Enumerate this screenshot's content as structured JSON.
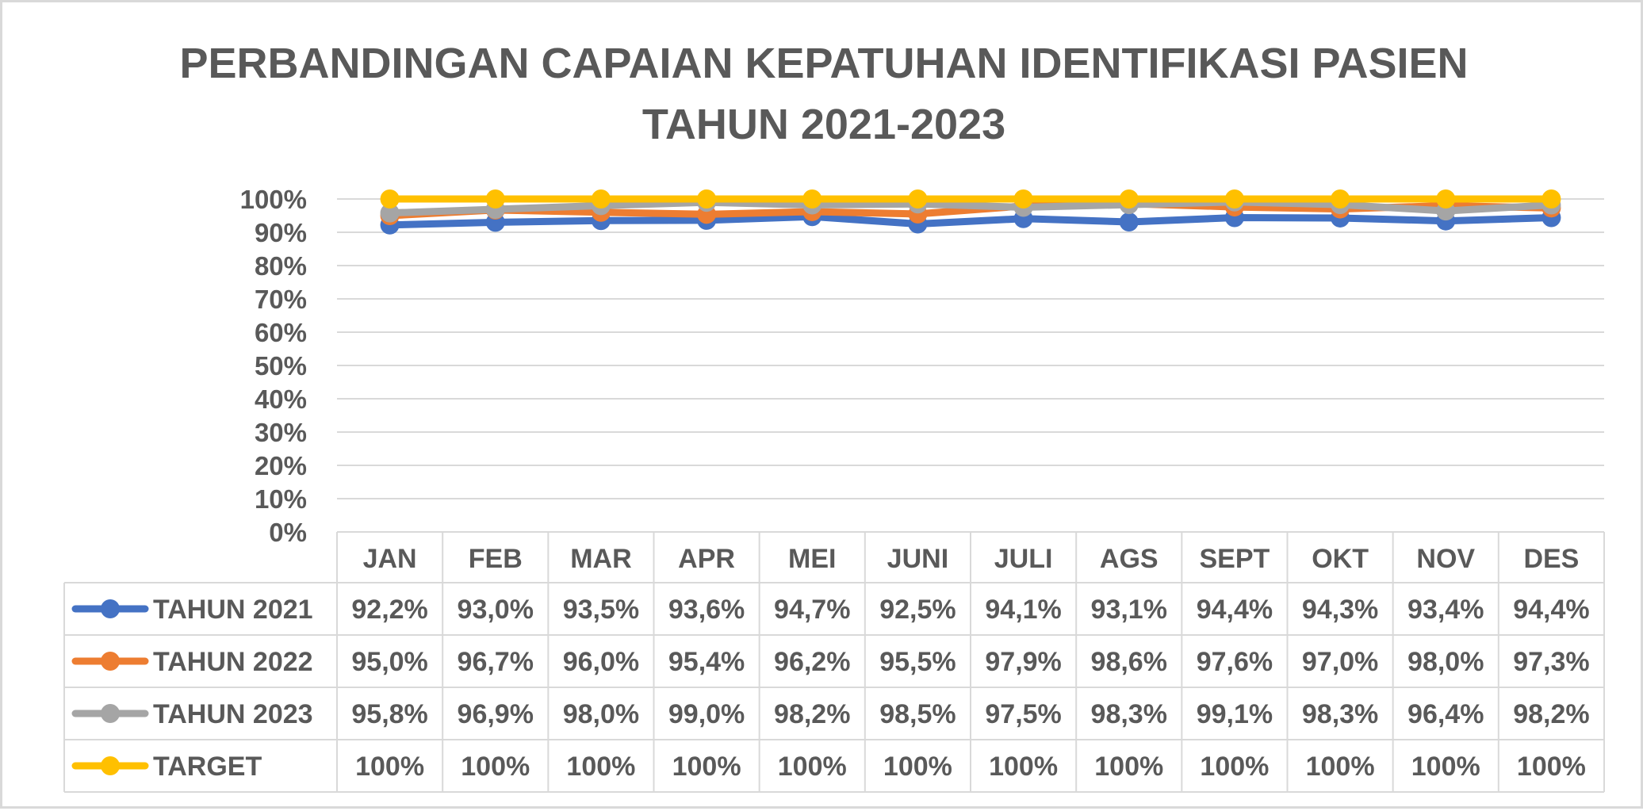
{
  "chart_data": {
    "type": "line",
    "title": "PERBANDINGAN CAPAIAN KEPATUHAN IDENTIFIKASI PASIEN",
    "subtitle": "TAHUN 2021-2023",
    "categories": [
      "JAN",
      "FEB",
      "MAR",
      "APR",
      "MEI",
      "JUNI",
      "JULI",
      "AGS",
      "SEPT",
      "OKT",
      "NOV",
      "DES"
    ],
    "y_ticks": [
      "0%",
      "10%",
      "20%",
      "30%",
      "40%",
      "50%",
      "60%",
      "70%",
      "80%",
      "90%",
      "100%"
    ],
    "ylim": [
      0,
      100
    ],
    "grid": true,
    "legend": "data-table",
    "series": [
      {
        "name": "TAHUN 2021",
        "color": "#4472c4",
        "values": [
          92.2,
          93.0,
          93.5,
          93.6,
          94.7,
          92.5,
          94.1,
          93.1,
          94.4,
          94.3,
          93.4,
          94.4
        ],
        "labels": [
          "92,2%",
          "93,0%",
          "93,5%",
          "93,6%",
          "94,7%",
          "92,5%",
          "94,1%",
          "93,1%",
          "94,4%",
          "94,3%",
          "93,4%",
          "94,4%"
        ]
      },
      {
        "name": "TAHUN 2022",
        "color": "#ed7d31",
        "values": [
          95.0,
          96.7,
          96.0,
          95.4,
          96.2,
          95.5,
          97.9,
          98.6,
          97.6,
          97.0,
          98.0,
          97.3
        ],
        "labels": [
          "95,0%",
          "96,7%",
          "96,0%",
          "95,4%",
          "96,2%",
          "95,5%",
          "97,9%",
          "98,6%",
          "97,6%",
          "97,0%",
          "98,0%",
          "97,3%"
        ]
      },
      {
        "name": "TAHUN 2023",
        "color": "#a5a5a5",
        "values": [
          95.8,
          96.9,
          98.0,
          99.0,
          98.2,
          98.5,
          97.5,
          98.3,
          99.1,
          98.3,
          96.4,
          98.2
        ],
        "labels": [
          "95,8%",
          "96,9%",
          "98,0%",
          "99,0%",
          "98,2%",
          "98,5%",
          "97,5%",
          "98,3%",
          "99,1%",
          "98,3%",
          "96,4%",
          "98,2%"
        ]
      },
      {
        "name": "TARGET",
        "color": "#ffc000",
        "values": [
          100,
          100,
          100,
          100,
          100,
          100,
          100,
          100,
          100,
          100,
          100,
          100
        ],
        "labels": [
          "100%",
          "100%",
          "100%",
          "100%",
          "100%",
          "100%",
          "100%",
          "100%",
          "100%",
          "100%",
          "100%",
          "100%"
        ]
      }
    ]
  }
}
